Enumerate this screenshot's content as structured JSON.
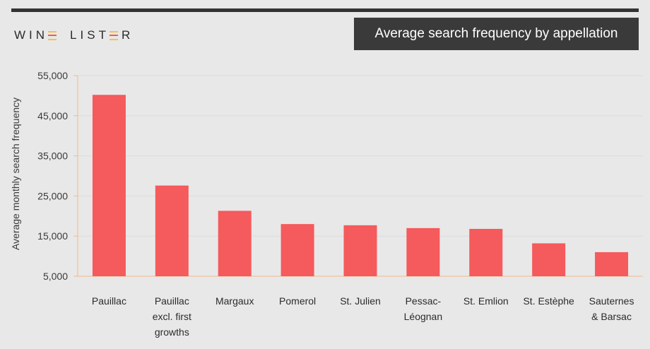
{
  "logo": {
    "part1": "WIN",
    "part2": "LIST",
    "part3": "R",
    "bar_colors": [
      "#f6c343",
      "#f15a5e",
      "#f6c343"
    ]
  },
  "colors": {
    "bar": "#f55a5c",
    "axis": "#f2b98e",
    "grid": "#dcdcdc",
    "title_bg": "#3a3a3a",
    "background": "#e8e8e8"
  },
  "chart_data": {
    "type": "bar",
    "title": "Average search frequency by appellation",
    "xlabel": "",
    "ylabel": "Average monthly search frequency",
    "ylim": [
      5000,
      55000
    ],
    "yticks": [
      5000,
      15000,
      25000,
      35000,
      45000,
      55000
    ],
    "ytick_labels": [
      "5,000",
      "15,000",
      "25,000",
      "35,000",
      "45,000",
      "55,000"
    ],
    "grid": true,
    "categories": [
      [
        "Pauillac"
      ],
      [
        "Pauillac",
        "excl. first",
        "growths"
      ],
      [
        "Margaux"
      ],
      [
        "Pomerol"
      ],
      [
        "St. Julien"
      ],
      [
        "Pessac-",
        "Léognan"
      ],
      [
        "St. Emlion"
      ],
      [
        "St. Estèphe"
      ],
      [
        "Sauternes",
        "& Barsac"
      ]
    ],
    "values": [
      50200,
      27600,
      21300,
      18000,
      17700,
      17000,
      16800,
      13200,
      11000
    ]
  }
}
